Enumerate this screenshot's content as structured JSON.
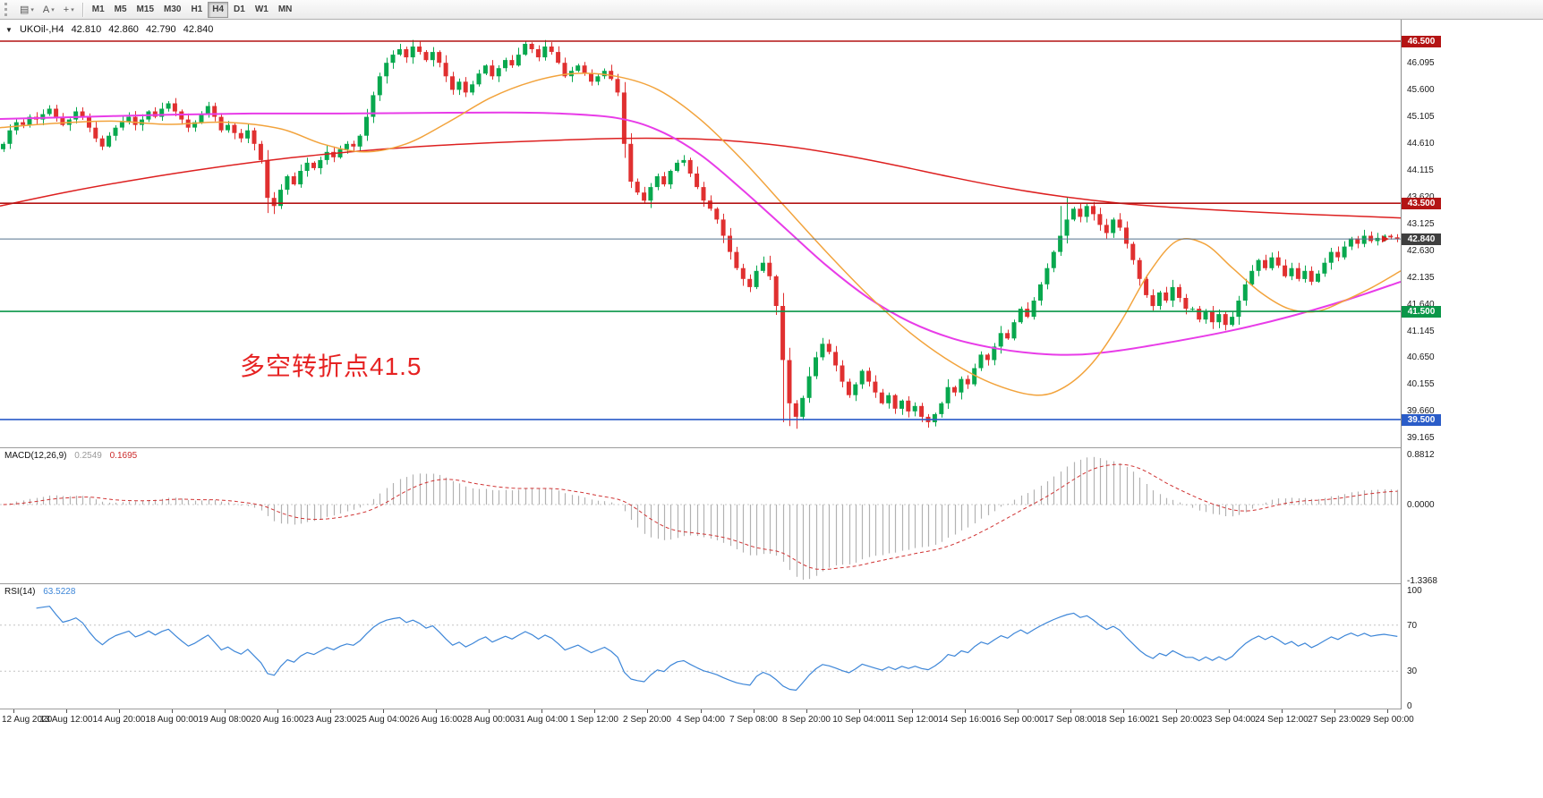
{
  "toolbar": {
    "icons": [
      {
        "name": "chart-window-icon",
        "glyph": "▤",
        "caret": true
      },
      {
        "name": "text-tool-icon",
        "glyph": "A",
        "caret": true
      },
      {
        "name": "crosshair-icon",
        "glyph": "+",
        "caret": true
      }
    ],
    "timeframes": [
      "M1",
      "M5",
      "M15",
      "M30",
      "H1",
      "H4",
      "D1",
      "W1",
      "MN"
    ],
    "active": "H4"
  },
  "header": {
    "caret": "▼",
    "symbol": "UKOil-,H4",
    "open": "42.810",
    "high": "42.860",
    "low": "42.790",
    "close": "42.840"
  },
  "annotation": {
    "text": "多空转折点41.5",
    "color": "#e62222"
  },
  "indicators": {
    "macd": {
      "label": "MACD(12,26,9)",
      "main_value": "0.2549",
      "signal_value": "0.1695",
      "axis": {
        "max": "0.8812",
        "mid": "0.0000",
        "min": "-1.3368"
      }
    },
    "rsi": {
      "label": "RSI(14)",
      "value": "63.5228",
      "axis": [
        100,
        70,
        30,
        0
      ],
      "levels": [
        70,
        30
      ]
    }
  },
  "chart_data": {
    "type": "candlestick",
    "symbol": "UKOil-",
    "timeframe": "H4",
    "ylim": [
      38.99,
      46.9
    ],
    "first_open": 44.5,
    "closes": [
      44.6,
      44.85,
      45.0,
      44.95,
      45.1,
      45.05,
      45.15,
      45.25,
      45.1,
      44.95,
      45.05,
      45.2,
      45.1,
      44.9,
      44.7,
      44.55,
      44.75,
      44.9,
      45.0,
      45.1,
      44.95,
      45.05,
      45.2,
      45.1,
      45.25,
      45.35,
      45.2,
      45.05,
      44.9,
      45.0,
      45.15,
      45.3,
      45.1,
      44.85,
      44.95,
      44.8,
      44.7,
      44.85,
      44.6,
      44.3,
      43.6,
      43.45,
      43.75,
      44.0,
      43.85,
      44.1,
      44.25,
      44.15,
      44.3,
      44.45,
      44.35,
      44.5,
      44.6,
      44.55,
      44.75,
      45.1,
      45.5,
      45.85,
      46.1,
      46.25,
      46.35,
      46.2,
      46.4,
      46.3,
      46.15,
      46.3,
      46.1,
      45.85,
      45.6,
      45.75,
      45.55,
      45.7,
      45.9,
      46.05,
      45.85,
      46.0,
      46.15,
      46.05,
      46.25,
      46.45,
      46.35,
      46.2,
      46.4,
      46.3,
      46.1,
      45.85,
      45.95,
      46.05,
      45.9,
      45.75,
      45.85,
      45.95,
      45.8,
      45.55,
      44.6,
      43.9,
      43.7,
      43.55,
      43.8,
      44.0,
      43.85,
      44.1,
      44.25,
      44.3,
      44.05,
      43.8,
      43.55,
      43.4,
      43.2,
      42.9,
      42.6,
      42.3,
      42.1,
      41.95,
      42.25,
      42.4,
      42.15,
      41.6,
      40.6,
      39.8,
      39.55,
      39.9,
      40.3,
      40.65,
      40.9,
      40.75,
      40.5,
      40.2,
      39.95,
      40.15,
      40.4,
      40.2,
      40.0,
      39.8,
      39.95,
      39.7,
      39.85,
      39.65,
      39.75,
      39.55,
      39.45,
      39.6,
      39.8,
      40.1,
      40.0,
      40.25,
      40.15,
      40.45,
      40.7,
      40.6,
      40.85,
      41.1,
      41.0,
      41.3,
      41.55,
      41.4,
      41.7,
      42.0,
      42.3,
      42.6,
      42.9,
      43.2,
      43.4,
      43.25,
      43.45,
      43.3,
      43.1,
      42.95,
      43.2,
      43.05,
      42.75,
      42.45,
      42.1,
      41.8,
      41.6,
      41.85,
      41.7,
      41.95,
      41.75,
      41.55,
      41.55,
      41.35,
      41.5,
      41.3,
      41.45,
      41.25,
      41.4,
      41.7,
      42.0,
      42.25,
      42.45,
      42.3,
      42.5,
      42.35,
      42.15,
      42.3,
      42.1,
      42.25,
      42.05,
      42.2,
      42.4,
      42.6,
      42.5,
      42.7,
      42.85,
      42.75,
      42.9,
      42.8,
      42.86,
      42.9,
      42.87,
      42.84
    ],
    "wick_overrides": {
      "40": {
        "low": 43.32
      },
      "41": {
        "low": 43.3
      },
      "60": {
        "high": 46.45
      },
      "79": {
        "high": 46.5
      },
      "82": {
        "high": 46.52
      },
      "118": {
        "low": 39.45
      },
      "119": {
        "low": 39.38
      },
      "120": {
        "low": 39.33
      },
      "140": {
        "low": 39.35
      },
      "160": {
        "high": 43.45
      },
      "161": {
        "high": 43.62
      },
      "211": {
        "high": 42.93
      }
    },
    "price_ticks": [
      "46.095",
      "45.600",
      "45.105",
      "44.610",
      "44.115",
      "43.620",
      "43.125",
      "42.630",
      "42.135",
      "41.640",
      "41.145",
      "40.650",
      "40.155",
      "39.660",
      "39.165"
    ],
    "levels": [
      {
        "price": 46.5,
        "label": "46.500",
        "color": "#b41414"
      },
      {
        "price": 43.5,
        "label": "43.500",
        "color": "#b41414"
      },
      {
        "price": 41.5,
        "label": "41.500",
        "color": "#0a9648"
      },
      {
        "price": 39.5,
        "label": "39.500",
        "color": "#2a5cc8"
      }
    ],
    "current_price": {
      "value": 42.84,
      "label": "42.840",
      "line_color": "#54708e",
      "badge_color": "#3f3f3f"
    },
    "moving_averages": [
      {
        "name": "slow-red",
        "color": "#dd2020",
        "width": 1.5,
        "points": [
          [
            0,
            43.45
          ],
          [
            0.05,
            43.72
          ],
          [
            0.1,
            43.95
          ],
          [
            0.15,
            44.15
          ],
          [
            0.2,
            44.32
          ],
          [
            0.25,
            44.45
          ],
          [
            0.3,
            44.55
          ],
          [
            0.35,
            44.62
          ],
          [
            0.4,
            44.67
          ],
          [
            0.44,
            44.7
          ],
          [
            0.48,
            44.7
          ],
          [
            0.52,
            44.66
          ],
          [
            0.56,
            44.56
          ],
          [
            0.6,
            44.4
          ],
          [
            0.64,
            44.2
          ],
          [
            0.68,
            43.98
          ],
          [
            0.72,
            43.78
          ],
          [
            0.76,
            43.62
          ],
          [
            0.8,
            43.5
          ],
          [
            0.84,
            43.42
          ],
          [
            0.88,
            43.36
          ],
          [
            0.92,
            43.31
          ],
          [
            0.96,
            43.27
          ],
          [
            1,
            43.23
          ]
        ]
      },
      {
        "name": "medium-magenta",
        "color": "#e83ce8",
        "width": 2,
        "points": [
          [
            0,
            45.06
          ],
          [
            0.06,
            45.1
          ],
          [
            0.12,
            45.14
          ],
          [
            0.18,
            45.16
          ],
          [
            0.24,
            45.16
          ],
          [
            0.3,
            45.17
          ],
          [
            0.36,
            45.18
          ],
          [
            0.4,
            45.16
          ],
          [
            0.44,
            45.08
          ],
          [
            0.47,
            44.85
          ],
          [
            0.5,
            44.4
          ],
          [
            0.53,
            43.75
          ],
          [
            0.56,
            43.05
          ],
          [
            0.59,
            42.35
          ],
          [
            0.62,
            41.75
          ],
          [
            0.65,
            41.3
          ],
          [
            0.68,
            41.0
          ],
          [
            0.71,
            40.82
          ],
          [
            0.74,
            40.72
          ],
          [
            0.77,
            40.7
          ],
          [
            0.8,
            40.78
          ],
          [
            0.84,
            40.95
          ],
          [
            0.88,
            41.15
          ],
          [
            0.92,
            41.4
          ],
          [
            0.96,
            41.7
          ],
          [
            1,
            42.05
          ]
        ]
      },
      {
        "name": "fast-orange",
        "color": "#f2a33c",
        "width": 1.5,
        "points": [
          [
            0,
            44.9
          ],
          [
            0.04,
            44.98
          ],
          [
            0.08,
            45.02
          ],
          [
            0.12,
            44.96
          ],
          [
            0.16,
            45.0
          ],
          [
            0.2,
            44.88
          ],
          [
            0.23,
            44.6
          ],
          [
            0.26,
            44.45
          ],
          [
            0.29,
            44.6
          ],
          [
            0.32,
            45.0
          ],
          [
            0.35,
            45.45
          ],
          [
            0.38,
            45.75
          ],
          [
            0.41,
            45.9
          ],
          [
            0.44,
            45.85
          ],
          [
            0.47,
            45.6
          ],
          [
            0.5,
            45.05
          ],
          [
            0.53,
            44.3
          ],
          [
            0.56,
            43.45
          ],
          [
            0.59,
            42.6
          ],
          [
            0.62,
            41.8
          ],
          [
            0.65,
            41.1
          ],
          [
            0.68,
            40.55
          ],
          [
            0.71,
            40.15
          ],
          [
            0.74,
            39.95
          ],
          [
            0.76,
            40.1
          ],
          [
            0.78,
            40.55
          ],
          [
            0.8,
            41.3
          ],
          [
            0.82,
            42.2
          ],
          [
            0.84,
            42.8
          ],
          [
            0.86,
            42.75
          ],
          [
            0.88,
            42.3
          ],
          [
            0.9,
            41.85
          ],
          [
            0.92,
            41.55
          ],
          [
            0.94,
            41.5
          ],
          [
            0.96,
            41.7
          ],
          [
            0.98,
            41.95
          ],
          [
            1,
            42.25
          ]
        ]
      }
    ],
    "time_labels": [
      "12 Aug 2020",
      "13 Aug 12:00",
      "14 Aug 20:00",
      "18 Aug 00:00",
      "19 Aug 08:00",
      "20 Aug 16:00",
      "23 Aug 23:00",
      "25 Aug 04:00",
      "26 Aug 16:00",
      "28 Aug 00:00",
      "31 Aug 04:00",
      "1 Sep 12:00",
      "2 Sep 20:00",
      "4 Sep 04:00",
      "7 Sep 08:00",
      "8 Sep 20:00",
      "10 Sep 04:00",
      "11 Sep 12:00",
      "14 Sep 16:00",
      "16 Sep 00:00",
      "17 Sep 08:00",
      "18 Sep 16:00",
      "21 Sep 20:00",
      "23 Sep 04:00",
      "24 Sep 12:00",
      "27 Sep 23:00",
      "29 Sep 00:00"
    ],
    "macd_params": [
      12,
      26,
      9
    ],
    "rsi_period": 14,
    "colors": {
      "up": "#08a84e",
      "down": "#e03030",
      "macd_hist": "#b2b2b2",
      "macd_signal": "#d03434",
      "rsi_line": "#3d86d8"
    }
  }
}
